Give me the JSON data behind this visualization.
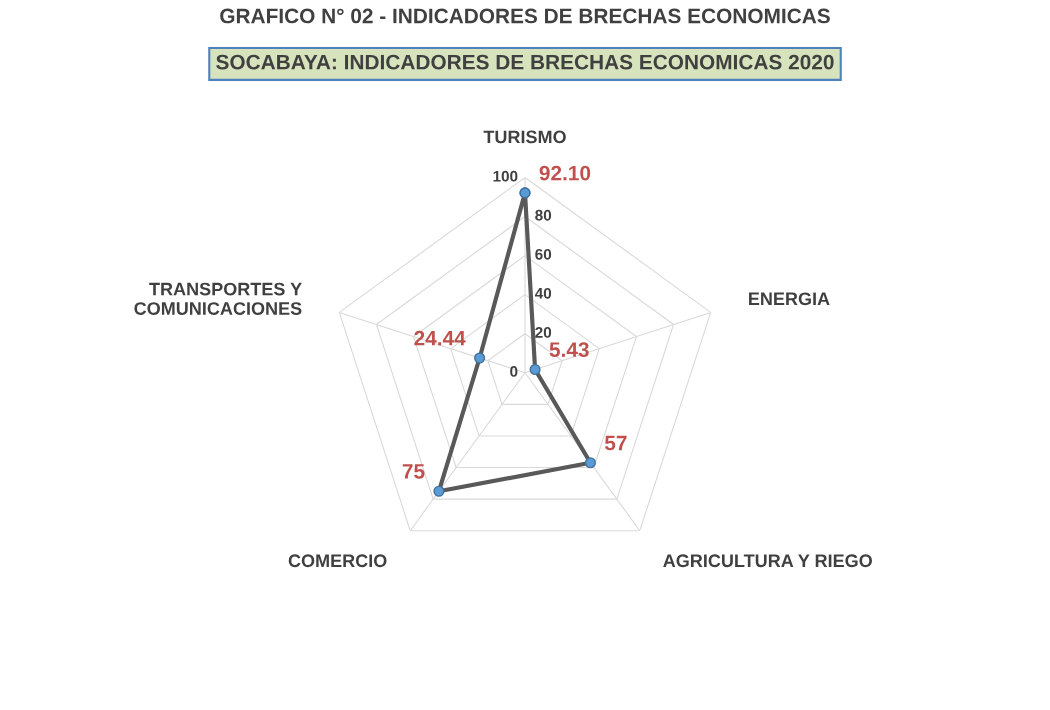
{
  "chart_data": {
    "type": "radar",
    "title": "SOCABAYA: INDICADORES DE BRECHAS ECONOMICAS 2020",
    "subtitle": "GRAFICO N° 02 - INDICADORES DE BRECHAS ECONOMICAS",
    "categories": [
      "TURISMO",
      "ENERGIA",
      "AGRICULTURA Y RIEGO",
      "COMERCIO",
      "TRANSPORTES Y\nCOMUNICACIONES"
    ],
    "series": [
      {
        "color": "#595959",
        "values": [
          92.1,
          5.43,
          57,
          75,
          24.44
        ],
        "value_labels": [
          "92.10",
          "5.43",
          "57",
          "75",
          "24.44"
        ]
      }
    ],
    "ylim": [
      0,
      100
    ],
    "yticks": [
      0,
      20,
      40,
      60,
      80,
      100
    ],
    "grid": true,
    "marker": "circle",
    "line_style": "solid"
  }
}
